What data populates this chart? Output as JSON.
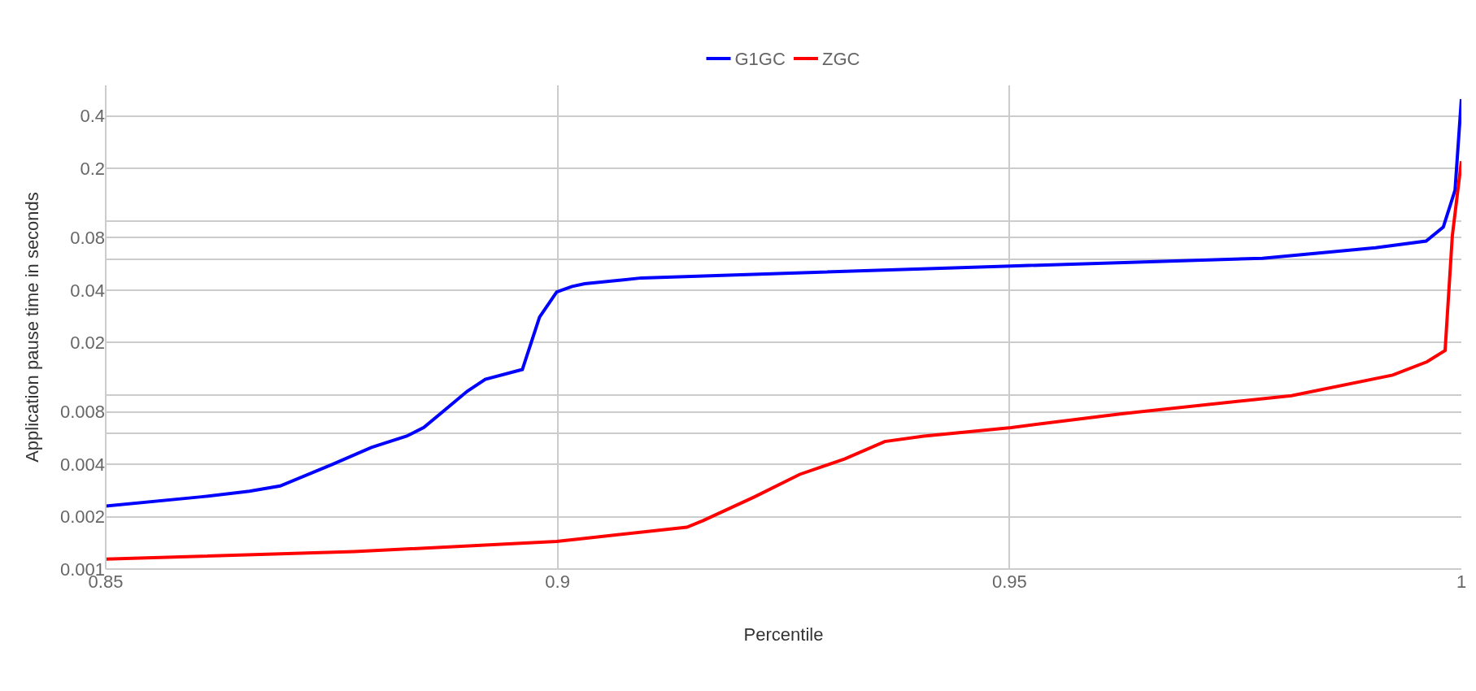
{
  "chart_data": {
    "type": "line",
    "xlabel": "Percentile",
    "ylabel": "Application pause time in seconds",
    "log": "y",
    "grid": true,
    "legend": "top",
    "marker": "none",
    "line_style": "solid",
    "xlim": [
      0.85,
      1
    ],
    "xticks": [
      0.85,
      0.9,
      0.95,
      1
    ],
    "ylim": [
      0.001,
      0.6
    ],
    "yticks": [
      0.001,
      0.002,
      0.004,
      {
        "value": 0.006,
        "label": null
      },
      0.008,
      {
        "value": 0.01,
        "label": null
      },
      0.02,
      0.04,
      {
        "value": 0.06,
        "label": null
      },
      0.08,
      {
        "value": 0.1,
        "label": null
      },
      0.2,
      0.4
    ],
    "series": [
      {
        "name": "G1GC",
        "color": "#0000ff",
        "x": [
          0.85,
          0.8606,
          0.8659,
          0.8693,
          0.8751,
          0.8794,
          0.8833,
          0.8852,
          0.89,
          0.892,
          0.8961,
          0.898,
          0.8999,
          0.9016,
          0.903,
          0.9093,
          0.9502,
          0.978,
          0.9905,
          0.9961,
          0.998,
          0.9993,
          1.0
        ],
        "values": [
          0.0023,
          0.0026,
          0.0028,
          0.003,
          0.004,
          0.005,
          0.0058,
          0.0065,
          0.0105,
          0.0123,
          0.014,
          0.028,
          0.039,
          0.042,
          0.0435,
          0.047,
          0.055,
          0.061,
          0.07,
          0.0765,
          0.092,
          0.15,
          0.5
        ]
      },
      {
        "name": "ZGC",
        "color": "#ff0000",
        "x": [
          0.85,
          0.8775,
          0.8999,
          0.903,
          0.9143,
          0.9161,
          0.9218,
          0.9268,
          0.9318,
          0.9362,
          0.9405,
          0.9502,
          0.9624,
          0.9812,
          0.9924,
          0.9962,
          0.9982,
          0.999,
          1.0
        ],
        "values": [
          0.00114,
          0.00126,
          0.00144,
          0.0015,
          0.00174,
          0.0019,
          0.0026,
          0.0035,
          0.0043,
          0.0054,
          0.0058,
          0.0065,
          0.0078,
          0.0099,
          0.013,
          0.0155,
          0.018,
          0.082,
          0.22
        ]
      }
    ]
  }
}
